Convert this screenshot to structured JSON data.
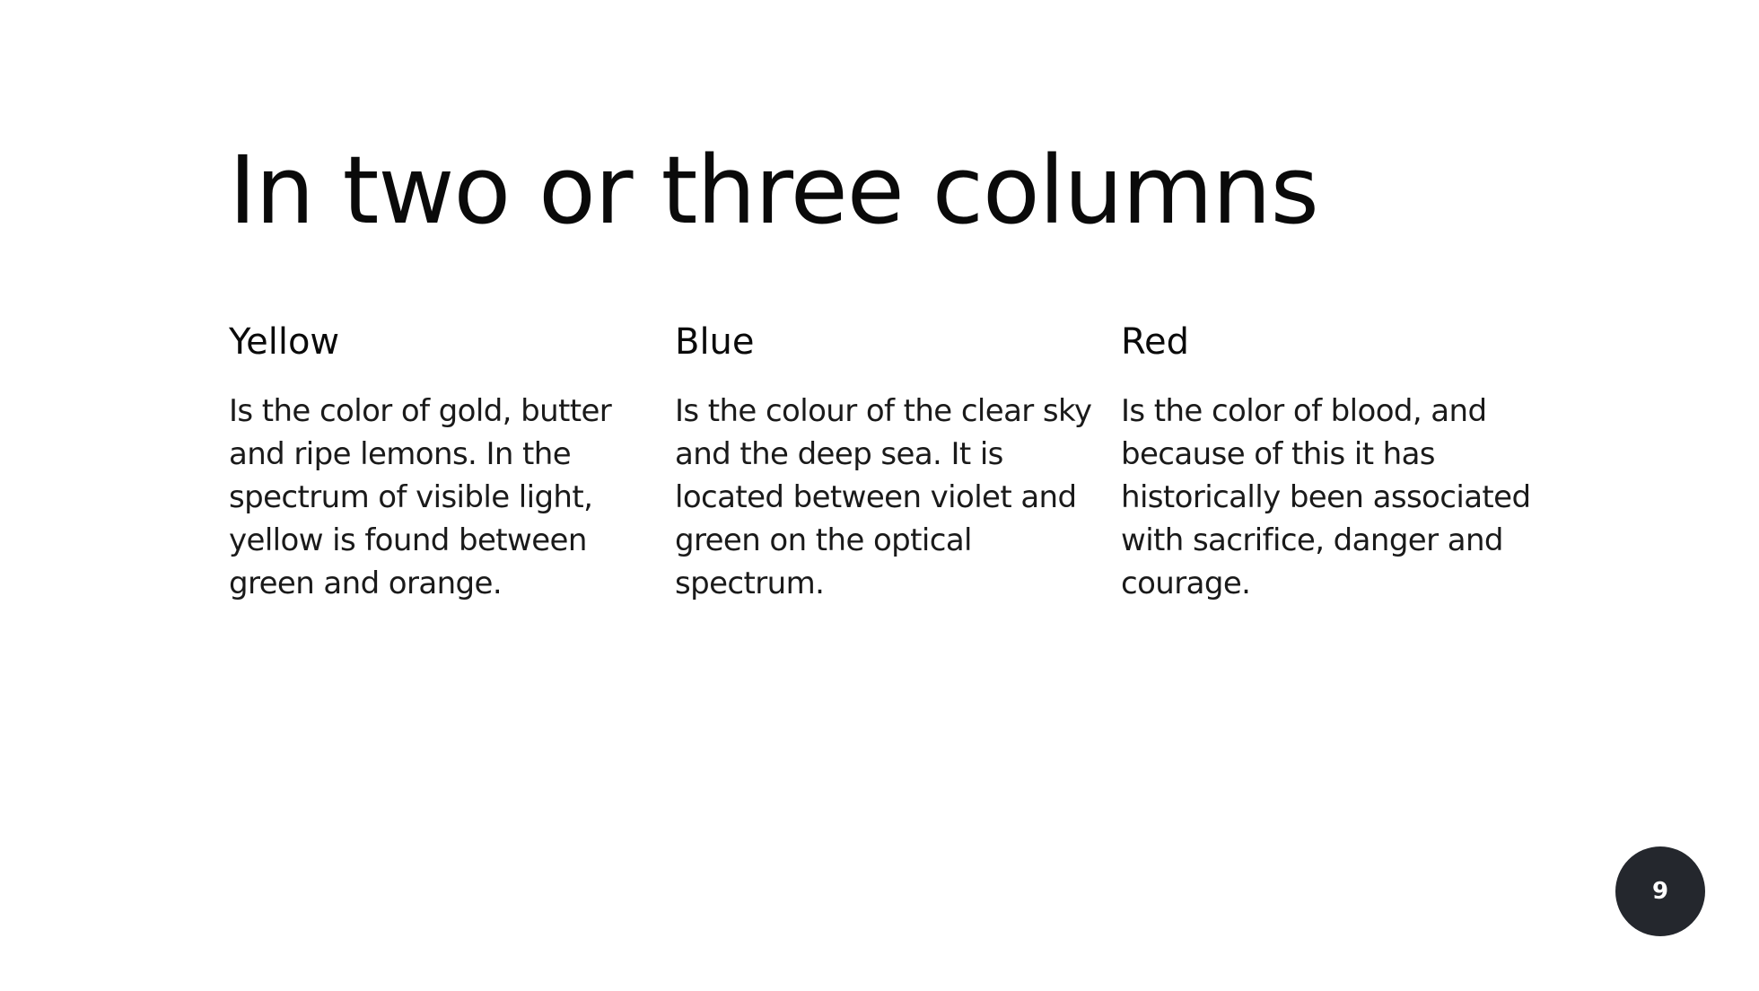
{
  "slide": {
    "title": "In two or three columns",
    "columns": [
      {
        "heading": "Yellow",
        "body": "Is the color of gold, butter and ripe lemons. In the spectrum of visible light, yellow is found between green and orange."
      },
      {
        "heading": "Blue",
        "body": "Is the colour of the clear sky and the deep sea. It is located between violet and green on the optical spectrum."
      },
      {
        "heading": "Red",
        "body": "Is the color of blood, and because of this it has historically been associated with sacrifice, danger and courage."
      }
    ],
    "page_number": "9"
  },
  "colors": {
    "background": "#ffffff",
    "text": "#0a0a0a",
    "badge": "#24272d",
    "badge_text": "#ffffff"
  }
}
